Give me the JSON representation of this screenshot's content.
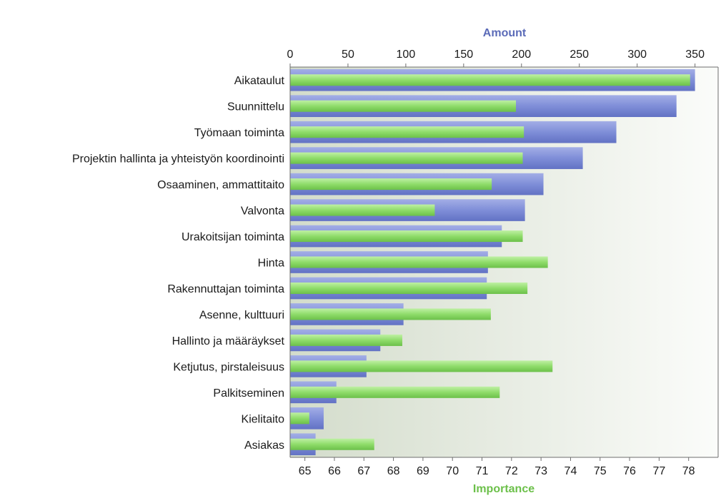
{
  "chart_data": {
    "type": "bar",
    "orientation": "horizontal",
    "categories": [
      "Aikataulut",
      "Suunnittelu",
      "Työmaan toiminta",
      "Projektin hallinta ja yhteistyön koordinointi",
      "Osaaminen, ammattitaito",
      "Valvonta",
      "Urakoitsijan toiminta",
      "Hinta",
      "Rakennuttajan toiminta",
      "Asenne, kulttuuri",
      "Hallinto ja määräykset",
      "Ketjutus, pirstaleisuus",
      "Palkitseminen",
      "Kielitaito",
      "Asiakas"
    ],
    "top_axis": {
      "title": "Amount",
      "range": [
        0,
        370
      ],
      "ticks": [
        0,
        50,
        100,
        150,
        200,
        250,
        300,
        350
      ],
      "color": "#5b6bb8"
    },
    "bottom_axis": {
      "title": "Importance",
      "range": [
        64.5,
        79.0
      ],
      "ticks": [
        65,
        66,
        67,
        68,
        69,
        70,
        71,
        72,
        73,
        74,
        75,
        76,
        77,
        78
      ],
      "color": "#6cc04a"
    },
    "series": [
      {
        "axis": "top",
        "color": "#7f8ed8",
        "values": [
          350,
          334,
          282,
          253,
          219,
          203,
          183,
          171,
          170,
          98,
          78,
          66,
          40,
          29,
          22
        ]
      },
      {
        "axis": "bottom",
        "color": "#8fdc6a",
        "values": [
          78.05,
          72.15,
          72.42,
          72.38,
          71.33,
          69.4,
          72.38,
          73.23,
          72.54,
          71.3,
          68.3,
          73.39,
          71.6,
          65.15,
          67.35
        ]
      }
    ],
    "grid": false,
    "legend": "none"
  }
}
